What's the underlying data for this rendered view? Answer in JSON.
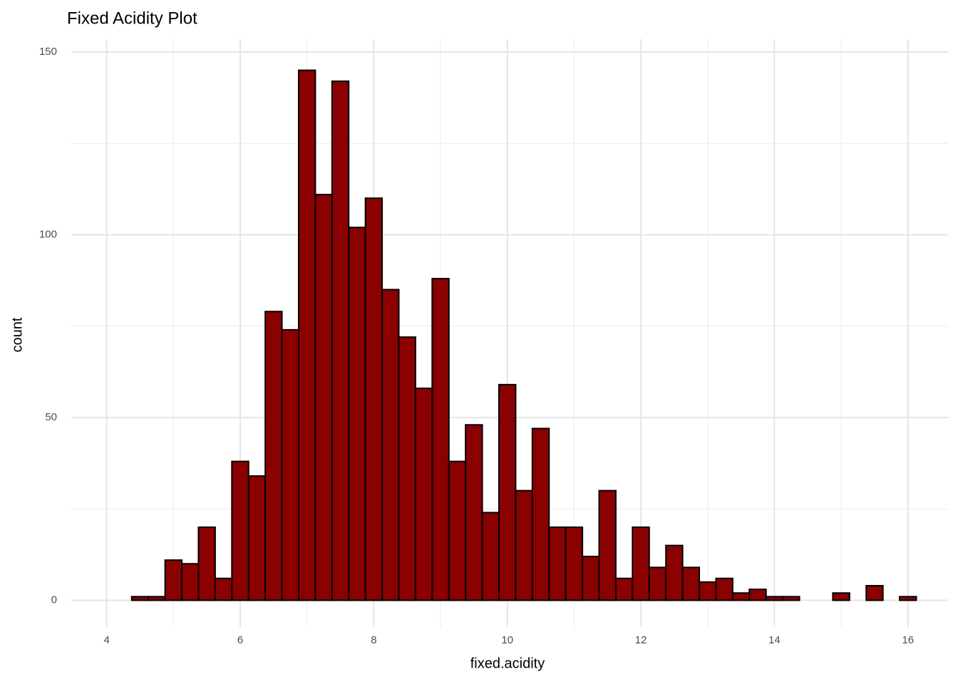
{
  "chart_data": {
    "type": "histogram",
    "title": "Fixed Acidity Plot",
    "x_label": "fixed.acidity",
    "y_label": "count",
    "bins": [
      4.375,
      4.625,
      4.875,
      5.125,
      5.375,
      5.625,
      5.875,
      6.125,
      6.375,
      6.625,
      6.875,
      7.125,
      7.375,
      7.625,
      7.875,
      8.125,
      8.375,
      8.625,
      8.875,
      9.125,
      9.375,
      9.625,
      9.875,
      10.125,
      10.375,
      10.625,
      10.875,
      11.125,
      11.375,
      11.625,
      11.875,
      12.125,
      12.375,
      12.625,
      12.875,
      13.125,
      13.375,
      13.625,
      13.875,
      14.125,
      14.375,
      14.625,
      14.875,
      15.125,
      15.375,
      15.625,
      15.875,
      16.125
    ],
    "values": [
      1,
      1,
      11,
      10,
      20,
      6,
      38,
      34,
      79,
      74,
      145,
      111,
      142,
      102,
      110,
      85,
      72,
      58,
      88,
      38,
      48,
      24,
      59,
      30,
      47,
      20,
      20,
      12,
      30,
      6,
      20,
      9,
      15,
      9,
      5,
      6,
      2,
      3,
      1,
      1,
      0,
      0,
      2,
      0,
      4,
      0,
      1
    ],
    "color": "#8b0000",
    "edgecolor": "#000000",
    "xlim": [
      3.47,
      16.6
    ],
    "ylim": [
      -7.3,
      153.5
    ],
    "xticks": [
      4,
      6,
      8,
      10,
      12,
      14,
      16
    ],
    "yticks": [
      0,
      50,
      100,
      150
    ],
    "xminor": [
      5,
      7,
      9,
      11,
      13,
      15
    ],
    "yminor": [
      25,
      75,
      125
    ],
    "grid": true
  }
}
